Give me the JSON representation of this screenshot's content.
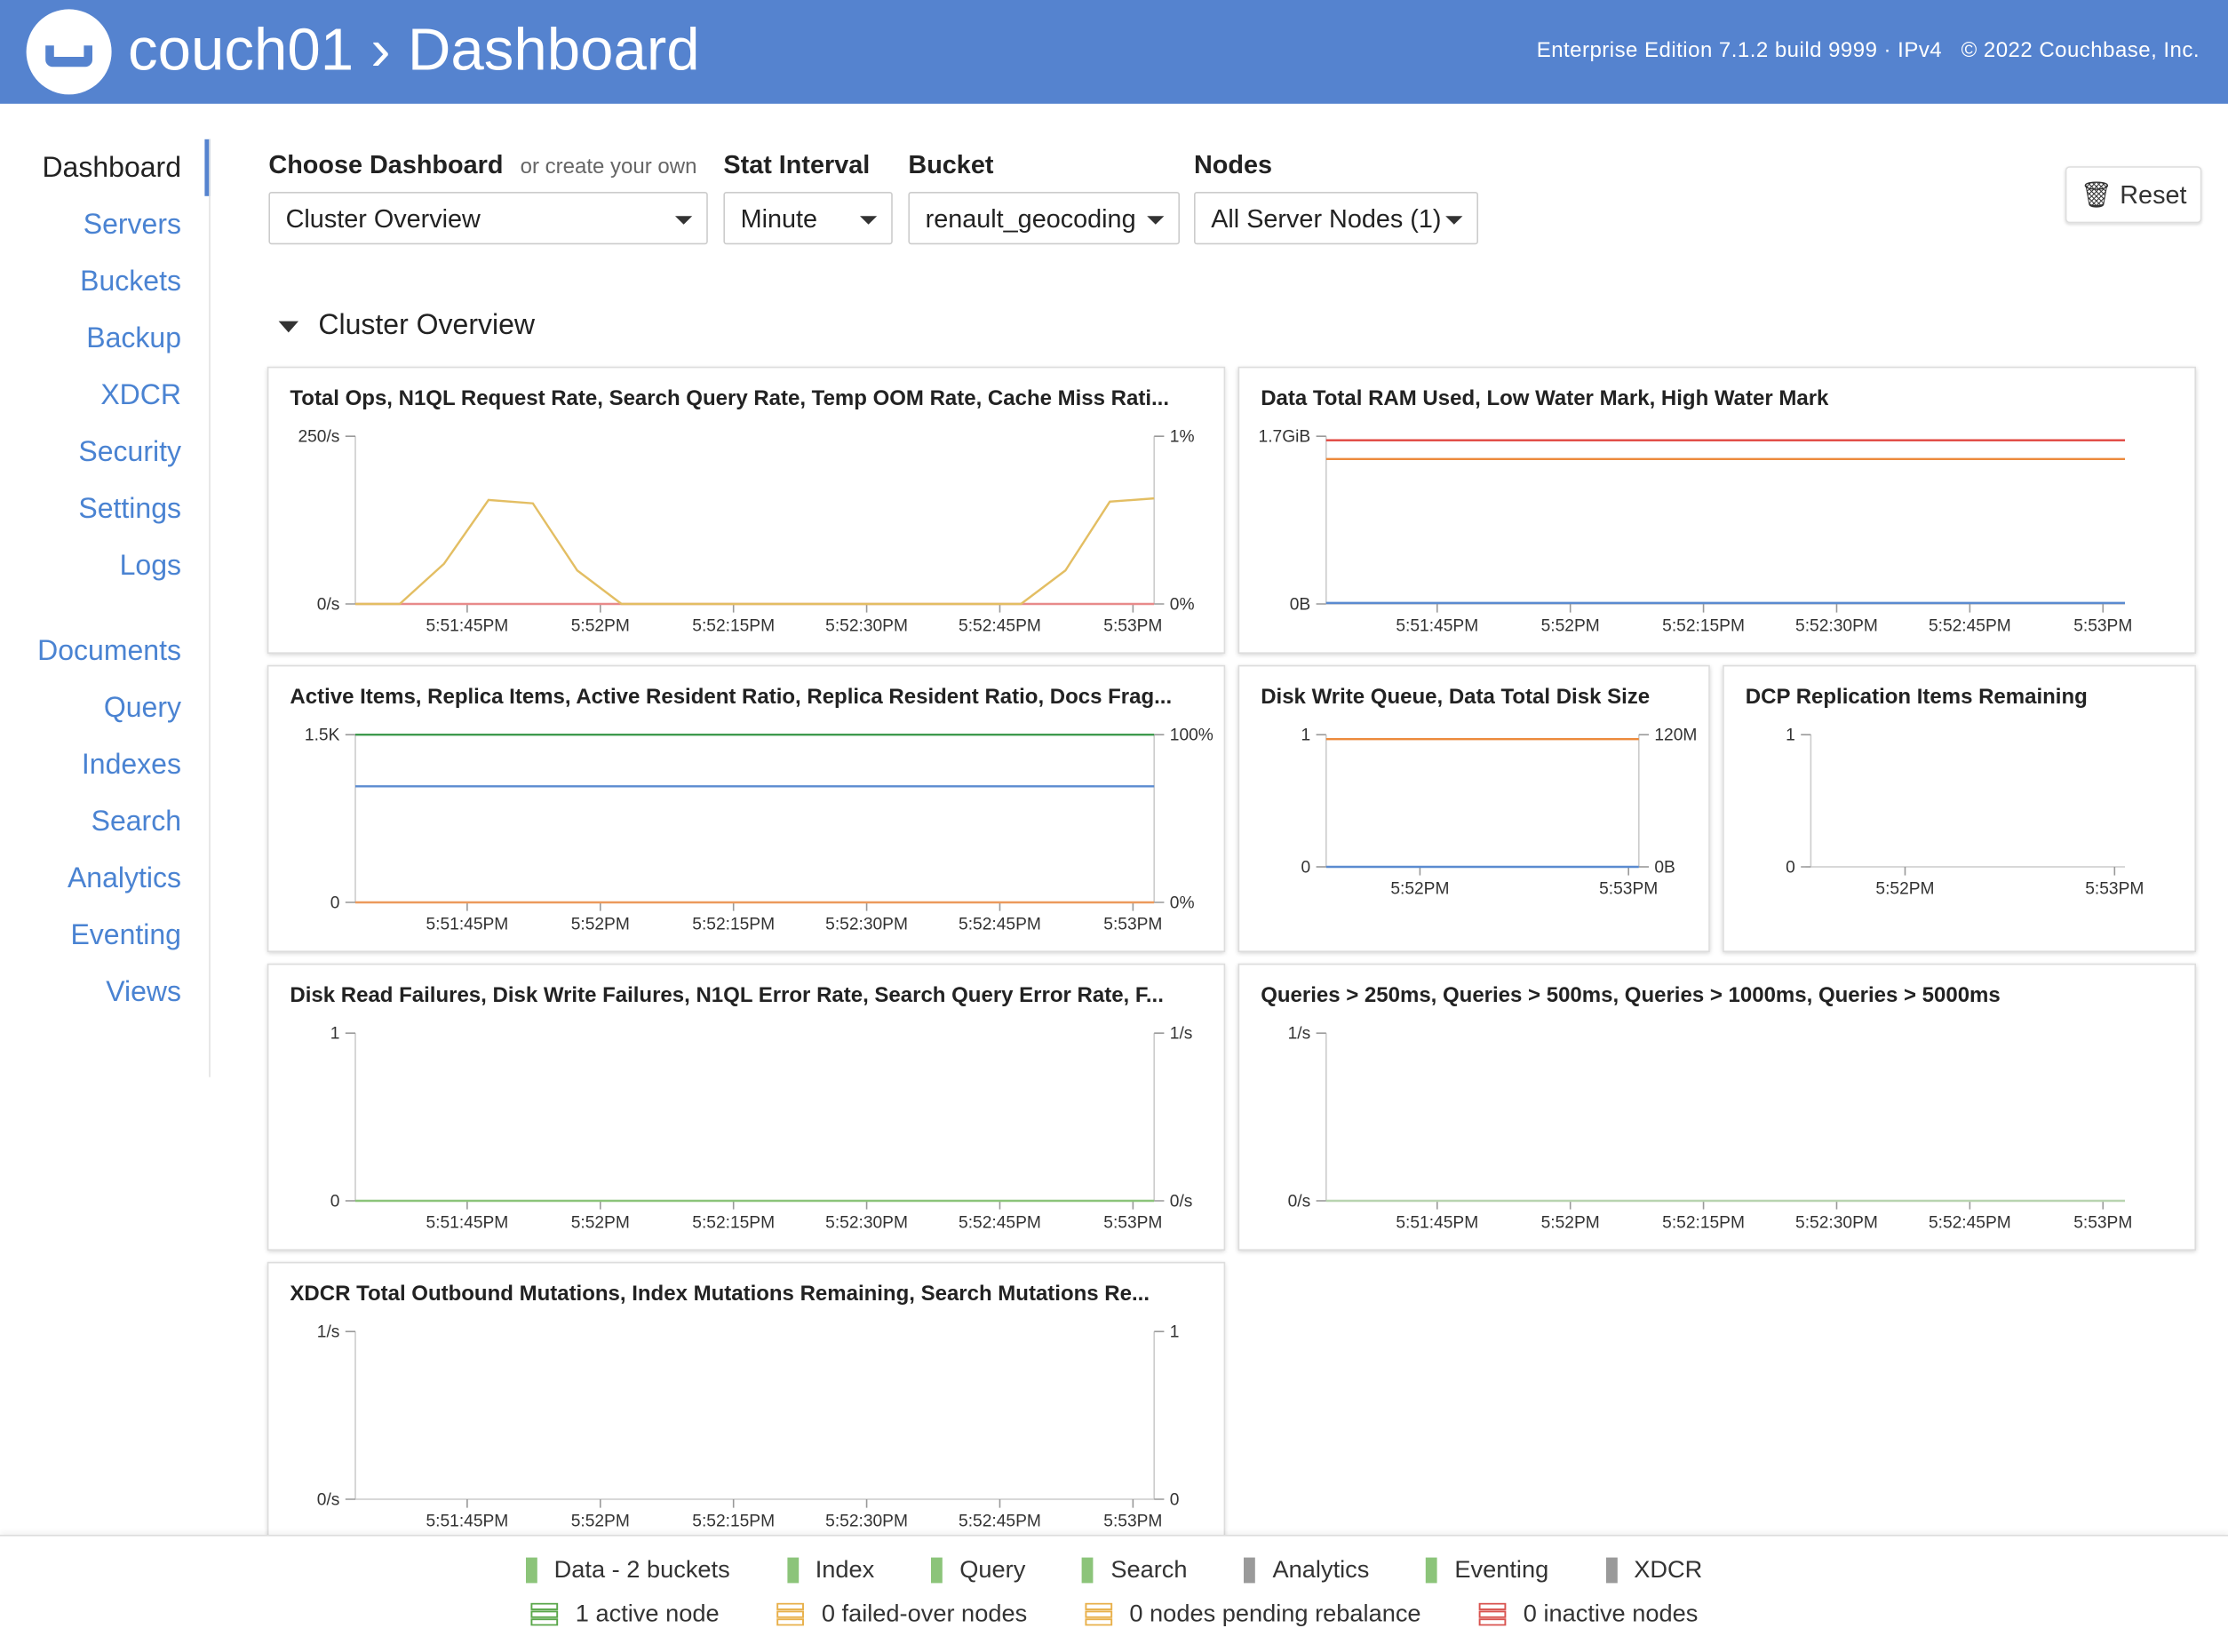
{
  "header": {
    "breadcrumb": [
      "couch01",
      "Dashboard"
    ],
    "edition": "Enterprise Edition 7.1.2 build 9999 · IPv4",
    "copyright": "© 2022 Couchbase, Inc."
  },
  "sidebar": {
    "items": [
      "Dashboard",
      "Servers",
      "Buckets",
      "Backup",
      "XDCR",
      "Security",
      "Settings",
      "Logs",
      "Documents",
      "Query",
      "Indexes",
      "Search",
      "Analytics",
      "Eventing",
      "Views"
    ]
  },
  "controls": [
    {
      "label": "Choose Dashboard",
      "hint": "or create your own",
      "value": "Cluster Overview"
    },
    {
      "label": "Stat Interval",
      "value": "Minute"
    },
    {
      "label": "Bucket",
      "value": "renault_geocoding"
    },
    {
      "label": "Nodes",
      "value": "All Server Nodes (1)"
    }
  ],
  "reset_button": "Reset",
  "section_title": "Cluster Overview",
  "charts": [
    {
      "type": "line",
      "title": "Total Ops, N1QL Request Rate, Search Query Rate, Temp OOM Rate, Cache Miss Rati...",
      "xticks": [
        "5:51:45PM",
        "5:52PM",
        "5:52:15PM",
        "5:52:30PM",
        "5:52:45PM",
        "5:53PM"
      ],
      "ylim": [
        0,
        250
      ],
      "yticks": [
        {
          "value": 0,
          "label": "0/s"
        },
        {
          "value": 250,
          "label": "250/s"
        }
      ],
      "y2lim": [
        0,
        1
      ],
      "y2ticks": [
        {
          "value": 0,
          "label": "0%"
        },
        {
          "value": 1,
          "label": "1%"
        }
      ],
      "series": [
        {
          "color": "#e88a8a",
          "values": [
            0,
            0,
            0,
            0,
            0,
            0,
            0,
            0,
            0,
            0,
            0,
            0,
            0,
            0,
            0,
            0,
            0,
            0,
            0
          ]
        },
        {
          "color": "#e3be63",
          "axis": "y2",
          "values": [
            0,
            0,
            0.24,
            0.62,
            0.6,
            0.2,
            0,
            0,
            0,
            0,
            0,
            0,
            0,
            0,
            0,
            0,
            0.2,
            0.61,
            0.63
          ]
        }
      ]
    },
    {
      "type": "line",
      "title": "Data Total RAM Used, Low Water Mark, High Water Mark",
      "xticks": [
        "5:51:45PM",
        "5:52PM",
        "5:52:15PM",
        "5:52:30PM",
        "5:52:45PM",
        "5:53PM"
      ],
      "ylim": [
        0,
        1.7
      ],
      "yticks": [
        {
          "value": 0,
          "label": "0B"
        },
        {
          "value": 1.7,
          "label": "1.7GiB"
        }
      ],
      "series": [
        {
          "color": "#e0443e",
          "values": [
            1.66,
            1.66
          ]
        },
        {
          "color": "#ec8a3c",
          "values": [
            1.47,
            1.47
          ]
        },
        {
          "color": "#5b8bd0",
          "values": [
            0.01,
            0.01
          ]
        }
      ]
    },
    {
      "type": "line",
      "title": "Active Items, Replica Items, Active Resident Ratio, Replica Resident Ratio, Docs Frag...",
      "xticks": [
        "5:51:45PM",
        "5:52PM",
        "5:52:15PM",
        "5:52:30PM",
        "5:52:45PM",
        "5:53PM"
      ],
      "ylim": [
        0,
        1500
      ],
      "yticks": [
        0,
        {
          "value": 1500,
          "label": "1.5K"
        }
      ],
      "y2lim": [
        0,
        100
      ],
      "y2ticks": [
        {
          "value": 0,
          "label": "0%"
        },
        {
          "value": 100,
          "label": "100%"
        }
      ],
      "series": [
        {
          "color": "#3f9a4e",
          "axis": "y2",
          "values": [
            100,
            100
          ]
        },
        {
          "color": "#5b8bd0",
          "values": [
            1038,
            1038
          ]
        },
        {
          "color": "#ec9a5c",
          "values": [
            0,
            0
          ]
        }
      ]
    },
    {
      "type": "line",
      "title": "Disk Write Queue, Data Total Disk Size",
      "xticks": [
        "5:52PM",
        "5:53PM"
      ],
      "ylim": [
        0,
        1
      ],
      "yticks": [
        0,
        1
      ],
      "y2lim": [
        0,
        120000000
      ],
      "y2ticks": [
        {
          "value": 0,
          "label": "0B"
        },
        {
          "value": 120000000,
          "label": "120M"
        }
      ],
      "series": [
        {
          "color": "#ec8a3c",
          "axis": "y2",
          "values": [
            116000000,
            116000000
          ]
        },
        {
          "color": "#5b8bd0",
          "values": [
            0,
            0
          ]
        }
      ]
    },
    {
      "type": "line",
      "title": "DCP Replication Items Remaining",
      "xticks": [
        "5:52PM",
        "5:53PM"
      ],
      "ylim": [
        0,
        1
      ],
      "yticks": [
        0,
        1
      ],
      "series": []
    },
    {
      "type": "line",
      "title": "Disk Read Failures, Disk Write Failures, N1QL Error Rate, Search Query Error Rate, F...",
      "xticks": [
        "5:51:45PM",
        "5:52PM",
        "5:52:15PM",
        "5:52:30PM",
        "5:52:45PM",
        "5:53PM"
      ],
      "ylim": [
        0,
        1
      ],
      "yticks": [
        0,
        1
      ],
      "y2lim": [
        0,
        1
      ],
      "y2ticks": [
        {
          "value": 0,
          "label": "0/s"
        },
        {
          "value": 1,
          "label": "1/s"
        }
      ],
      "series": [
        {
          "color": "#8cc47a",
          "values": [
            0,
            0
          ]
        }
      ]
    },
    {
      "type": "line",
      "title": "Queries > 250ms, Queries > 500ms, Queries > 1000ms, Queries > 5000ms",
      "xticks": [
        "5:51:45PM",
        "5:52PM",
        "5:52:15PM",
        "5:52:30PM",
        "5:52:45PM",
        "5:53PM"
      ],
      "ylim": [
        0,
        1
      ],
      "yticks": [
        {
          "value": 0,
          "label": "0/s"
        },
        {
          "value": 1,
          "label": "1/s"
        }
      ],
      "series": [
        {
          "color": "#b8d4b0",
          "values": [
            0,
            0
          ]
        }
      ]
    },
    {
      "type": "line",
      "title": "XDCR Total Outbound Mutations, Index Mutations Remaining, Search Mutations Re...",
      "xticks": [
        "5:51:45PM",
        "5:52PM",
        "5:52:15PM",
        "5:52:30PM",
        "5:52:45PM",
        "5:53PM"
      ],
      "ylim": [
        0,
        1
      ],
      "yticks": [
        {
          "value": 0,
          "label": "0/s"
        },
        {
          "value": 1,
          "label": "1/s"
        }
      ],
      "y2lim": [
        0,
        1
      ],
      "y2ticks": [
        0,
        1
      ],
      "series": []
    }
  ],
  "footer": {
    "services": [
      {
        "label": "Data - 2 buckets",
        "color": "#8cc47a"
      },
      {
        "label": "Index",
        "color": "#8cc47a"
      },
      {
        "label": "Query",
        "color": "#8cc47a"
      },
      {
        "label": "Search",
        "color": "#8cc47a"
      },
      {
        "label": "Analytics",
        "color": "#9a9a9a"
      },
      {
        "label": "Eventing",
        "color": "#8cc47a"
      },
      {
        "label": "XDCR",
        "color": "#9a9a9a"
      }
    ],
    "node_status": [
      {
        "label": "1 active node",
        "color": "#5aa74a"
      },
      {
        "label": "0 failed-over nodes",
        "color": "#e8b04a"
      },
      {
        "label": "0 nodes pending rebalance",
        "color": "#e8b04a"
      },
      {
        "label": "0 inactive nodes",
        "color": "#d9534f"
      }
    ]
  }
}
